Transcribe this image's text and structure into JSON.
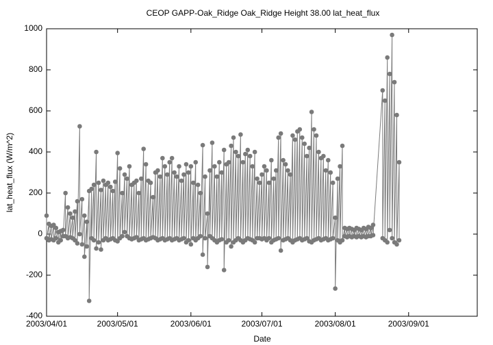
{
  "chart_data": {
    "type": "line",
    "title": "CEOP GAPP-Oak_Ridge Oak_Ridge Height 38.00 lat_heat_flux",
    "x_label": "Date",
    "y_label": "lat_heat_flux (W/m^2)",
    "color": "#7a7a7a",
    "markers": true,
    "grid": false,
    "xlim": [
      "2003/04/01",
      "2003/09/30"
    ],
    "xticks": [
      "2003/04/01",
      "2003/05/01",
      "2003/06/01",
      "2003/07/01",
      "2003/08/01",
      "2003/09/01"
    ],
    "ylim": [
      -400,
      1000
    ],
    "yticks": [
      -400,
      -200,
      0,
      200,
      400,
      600,
      800,
      1000
    ],
    "x": [
      "2003/04/01",
      "2003/04/01",
      "2003/04/02",
      "2003/04/02",
      "2003/04/03",
      "2003/04/03",
      "2003/04/04",
      "2003/04/04",
      "2003/04/05",
      "2003/04/05",
      "2003/04/06",
      "2003/04/06",
      "2003/04/07",
      "2003/04/07",
      "2003/04/08",
      "2003/04/08",
      "2003/04/09",
      "2003/04/09",
      "2003/04/10",
      "2003/04/10",
      "2003/04/11",
      "2003/04/11",
      "2003/04/12",
      "2003/04/12",
      "2003/04/13",
      "2003/04/13",
      "2003/04/14",
      "2003/04/14",
      "2003/04/15",
      "2003/04/15",
      "2003/04/16",
      "2003/04/16",
      "2003/04/17",
      "2003/04/17",
      "2003/04/18",
      "2003/04/18",
      "2003/04/19",
      "2003/04/19",
      "2003/04/20",
      "2003/04/20",
      "2003/04/21",
      "2003/04/21",
      "2003/04/22",
      "2003/04/22",
      "2003/04/23",
      "2003/04/23",
      "2003/04/24",
      "2003/04/24",
      "2003/04/25",
      "2003/04/25",
      "2003/04/26",
      "2003/04/26",
      "2003/04/27",
      "2003/04/27",
      "2003/04/28",
      "2003/04/28",
      "2003/04/29",
      "2003/04/29",
      "2003/04/30",
      "2003/04/30",
      "2003/05/01",
      "2003/05/01",
      "2003/05/02",
      "2003/05/02",
      "2003/05/03",
      "2003/05/03",
      "2003/05/04",
      "2003/05/04",
      "2003/05/05",
      "2003/05/05",
      "2003/05/06",
      "2003/05/06",
      "2003/05/07",
      "2003/05/07",
      "2003/05/08",
      "2003/05/08",
      "2003/05/09",
      "2003/05/09",
      "2003/05/10",
      "2003/05/10",
      "2003/05/11",
      "2003/05/11",
      "2003/05/12",
      "2003/05/12",
      "2003/05/13",
      "2003/05/13",
      "2003/05/14",
      "2003/05/14",
      "2003/05/15",
      "2003/05/15",
      "2003/05/16",
      "2003/05/16",
      "2003/05/17",
      "2003/05/17",
      "2003/05/18",
      "2003/05/18",
      "2003/05/19",
      "2003/05/19",
      "2003/05/20",
      "2003/05/20",
      "2003/05/21",
      "2003/05/21",
      "2003/05/22",
      "2003/05/22",
      "2003/05/23",
      "2003/05/23",
      "2003/05/24",
      "2003/05/24",
      "2003/05/25",
      "2003/05/25",
      "2003/05/26",
      "2003/05/26",
      "2003/05/27",
      "2003/05/27",
      "2003/05/28",
      "2003/05/28",
      "2003/05/29",
      "2003/05/29",
      "2003/05/30",
      "2003/05/30",
      "2003/05/31",
      "2003/05/31",
      "2003/06/01",
      "2003/06/01",
      "2003/06/02",
      "2003/06/02",
      "2003/06/03",
      "2003/06/03",
      "2003/06/04",
      "2003/06/04",
      "2003/06/05",
      "2003/06/05",
      "2003/06/06",
      "2003/06/06",
      "2003/06/07",
      "2003/06/07",
      "2003/06/08",
      "2003/06/08",
      "2003/06/09",
      "2003/06/09",
      "2003/06/10",
      "2003/06/10",
      "2003/06/11",
      "2003/06/11",
      "2003/06/12",
      "2003/06/12",
      "2003/06/13",
      "2003/06/13",
      "2003/06/14",
      "2003/06/14",
      "2003/06/15",
      "2003/06/15",
      "2003/06/16",
      "2003/06/16",
      "2003/06/17",
      "2003/06/17",
      "2003/06/18",
      "2003/06/18",
      "2003/06/19",
      "2003/06/19",
      "2003/06/20",
      "2003/06/20",
      "2003/06/21",
      "2003/06/21",
      "2003/06/22",
      "2003/06/22",
      "2003/06/23",
      "2003/06/23",
      "2003/06/24",
      "2003/06/24",
      "2003/06/25",
      "2003/06/25",
      "2003/06/26",
      "2003/06/26",
      "2003/06/27",
      "2003/06/27",
      "2003/06/28",
      "2003/06/28",
      "2003/06/29",
      "2003/06/29",
      "2003/06/30",
      "2003/06/30",
      "2003/07/01",
      "2003/07/01",
      "2003/07/02",
      "2003/07/02",
      "2003/07/03",
      "2003/07/03",
      "2003/07/04",
      "2003/07/04",
      "2003/07/05",
      "2003/07/05",
      "2003/07/06",
      "2003/07/06",
      "2003/07/07",
      "2003/07/07",
      "2003/07/08",
      "2003/07/08",
      "2003/07/09",
      "2003/07/09",
      "2003/07/10",
      "2003/07/10",
      "2003/07/11",
      "2003/07/11",
      "2003/07/12",
      "2003/07/12",
      "2003/07/13",
      "2003/07/13",
      "2003/07/14",
      "2003/07/14",
      "2003/07/15",
      "2003/07/15",
      "2003/07/16",
      "2003/07/16",
      "2003/07/17",
      "2003/07/17",
      "2003/07/18",
      "2003/07/18",
      "2003/07/19",
      "2003/07/19",
      "2003/07/20",
      "2003/07/20",
      "2003/07/21",
      "2003/07/21",
      "2003/07/22",
      "2003/07/22",
      "2003/07/23",
      "2003/07/23",
      "2003/07/24",
      "2003/07/24",
      "2003/07/25",
      "2003/07/25",
      "2003/07/26",
      "2003/07/26",
      "2003/07/27",
      "2003/07/27",
      "2003/07/28",
      "2003/07/28",
      "2003/07/29",
      "2003/07/29",
      "2003/07/30",
      "2003/07/30",
      "2003/07/31",
      "2003/07/31",
      "2003/08/01",
      "2003/08/01",
      "2003/08/02",
      "2003/08/02",
      "2003/08/03",
      "2003/08/03",
      "2003/08/04",
      "2003/08/04",
      "2003/08/05",
      "2003/08/05",
      "2003/08/06",
      "2003/08/06",
      "2003/08/07",
      "2003/08/07",
      "2003/08/08",
      "2003/08/08",
      "2003/08/09",
      "2003/08/09",
      "2003/08/10",
      "2003/08/10",
      "2003/08/11",
      "2003/08/11",
      "2003/08/12",
      "2003/08/12",
      "2003/08/13",
      "2003/08/13",
      "2003/08/14",
      "2003/08/14",
      "2003/08/15",
      "2003/08/15",
      "2003/08/16",
      "2003/08/16",
      "2003/08/17",
      "2003/08/17",
      "2003/08/21",
      "2003/08/21",
      "2003/08/22",
      "2003/08/22",
      "2003/08/23",
      "2003/08/23",
      "2003/08/24",
      "2003/08/24",
      "2003/08/25",
      "2003/08/25",
      "2003/08/26",
      "2003/08/26",
      "2003/08/27",
      "2003/08/27",
      "2003/08/28",
      "2003/08/28"
    ],
    "values": [
      90,
      -20,
      50,
      -30,
      40,
      -25,
      45,
      -30,
      30,
      -20,
      10,
      -40,
      15,
      -30,
      20,
      -10,
      200,
      -10,
      130,
      -20,
      100,
      -15,
      80,
      -20,
      110,
      -30,
      160,
      -45,
      525,
      0,
      170,
      -50,
      90,
      -110,
      60,
      -60,
      210,
      -325,
      220,
      -20,
      240,
      -30,
      400,
      -70,
      250,
      -40,
      215,
      -75,
      260,
      -30,
      240,
      -20,
      250,
      -30,
      230,
      -25,
      210,
      -20,
      255,
      -30,
      395,
      -35,
      320,
      -20,
      200,
      -10,
      290,
      10,
      270,
      -10,
      330,
      -20,
      240,
      -25,
      250,
      -20,
      260,
      -15,
      200,
      -30,
      270,
      -25,
      415,
      -20,
      340,
      -30,
      260,
      -25,
      250,
      -20,
      180,
      -15,
      300,
      -20,
      310,
      -30,
      280,
      -25,
      370,
      -20,
      330,
      -30,
      290,
      -25,
      350,
      -20,
      370,
      -30,
      300,
      -25,
      280,
      -20,
      330,
      -30,
      260,
      -25,
      290,
      -20,
      340,
      -40,
      300,
      -30,
      330,
      -50,
      250,
      -20,
      350,
      -30,
      240,
      -20,
      200,
      -10,
      433,
      -100,
      280,
      -20,
      100,
      -160,
      310,
      -10,
      445,
      -20,
      330,
      -30,
      280,
      -40,
      350,
      -30,
      300,
      -25,
      410,
      -175,
      340,
      -40,
      350,
      -30,
      430,
      -60,
      470,
      -40,
      400,
      -30,
      380,
      -20,
      485,
      -30,
      350,
      -40,
      390,
      -30,
      410,
      -20,
      380,
      -25,
      330,
      -30,
      400,
      -40,
      270,
      -20,
      250,
      -20,
      290,
      -25,
      330,
      -20,
      310,
      -30,
      250,
      -20,
      360,
      -40,
      270,
      -30,
      310,
      -25,
      470,
      -20,
      490,
      -80,
      360,
      -30,
      340,
      -25,
      310,
      -20,
      290,
      -30,
      480,
      -40,
      460,
      -30,
      500,
      -25,
      510,
      -20,
      470,
      -30,
      440,
      -25,
      380,
      -20,
      420,
      -35,
      595,
      -40,
      510,
      -30,
      480,
      -25,
      400,
      -20,
      370,
      -30,
      380,
      -25,
      310,
      -20,
      360,
      -30,
      300,
      -25,
      250,
      -20,
      80,
      -265,
      270,
      -30,
      330,
      -40,
      430,
      -30,
      30,
      -10,
      25,
      -15,
      30,
      -10,
      25,
      -15,
      20,
      -10,
      30,
      -15,
      25,
      -10,
      20,
      -15,
      30,
      -10,
      25,
      -15,
      35,
      -10,
      30,
      -10,
      45,
      -5,
      700,
      -20,
      650,
      -30,
      860,
      -40,
      780,
      20,
      970,
      -20,
      740,
      -40,
      580,
      -50,
      350,
      -30
    ]
  }
}
